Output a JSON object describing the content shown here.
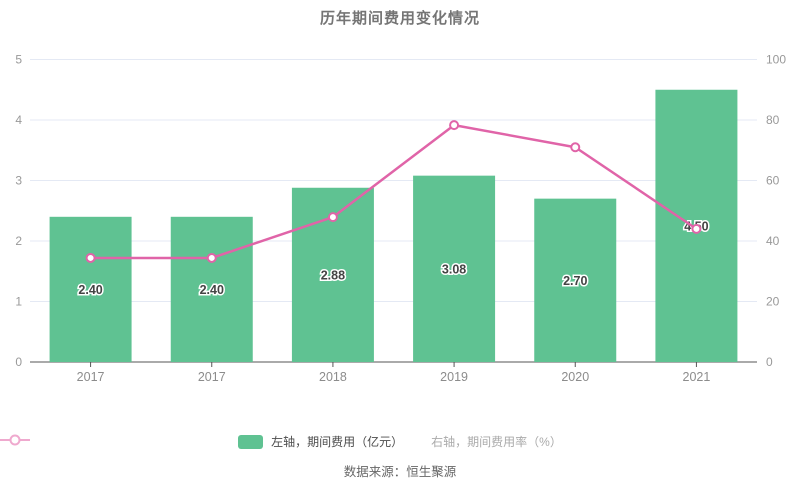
{
  "title": "历年期间费用变化情况",
  "source": "数据来源：恒生聚源",
  "legend": [
    {
      "label": "左轴，期间费用（亿元）",
      "type": "bar"
    },
    {
      "label": "右轴，期间费用率（%）",
      "type": "line"
    }
  ],
  "colors": {
    "bar": "#5fc292",
    "line": "#e064a8",
    "legend_line_icon": "#efa9ce",
    "grid": "#e4e9f4",
    "axis": "#555555",
    "tick_label": "#999999",
    "x_label": "#8c8c8c",
    "bar_value_label": "#444444",
    "bar_value_halo": "#ffffff",
    "marker_fill": "#ffffff"
  },
  "chart_data": {
    "type": "bar+line combo",
    "title": "历年期间费用变化情况",
    "categories": [
      "2017",
      "2017",
      "2018",
      "2019",
      "2020",
      "2021"
    ],
    "series": [
      {
        "name": "左轴，期间费用（亿元）",
        "type": "bar",
        "axis": "left",
        "values": [
          2.4,
          2.4,
          2.88,
          3.08,
          2.7,
          4.5
        ],
        "labels": [
          "2.40",
          "2.40",
          "2.88",
          "3.08",
          "2.70",
          "4.50"
        ]
      },
      {
        "name": "右轴，期间费用率（%）",
        "type": "line",
        "axis": "right",
        "values": [
          34.4,
          34.4,
          47.9,
          78.3,
          71.0,
          44.0
        ]
      }
    ],
    "left_axis": {
      "min": 0,
      "max": 5,
      "ticks": [
        0,
        1,
        2,
        3,
        4,
        5
      ]
    },
    "right_axis": {
      "min": 0,
      "max": 100,
      "ticks": [
        0,
        20,
        40,
        60,
        80,
        100
      ]
    },
    "grid": true,
    "legend_position": "bottom",
    "value_labels": "inside bars"
  }
}
